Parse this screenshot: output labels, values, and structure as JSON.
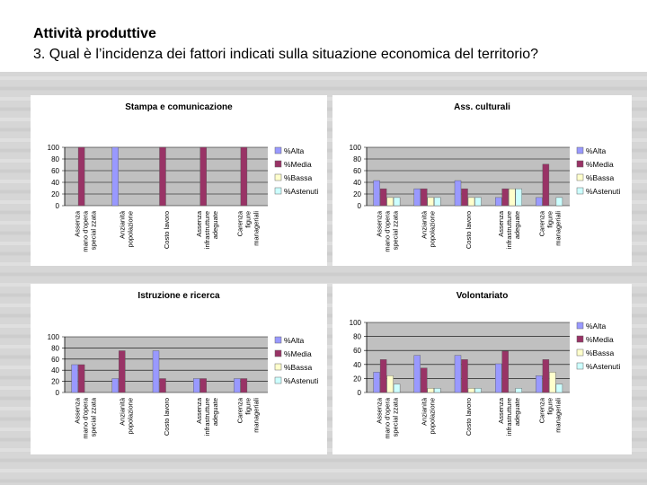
{
  "header": {
    "title": "Attività produttive",
    "subtitle": "3. Qual è l’incidenza dei fattori indicati sulla situazione economica del territorio?"
  },
  "colors": {
    "alta": "#9999ff",
    "media": "#993366",
    "bassa": "#ffffcc",
    "astenuti": "#ccffff",
    "plot_bg": "#c0c0c0"
  },
  "legend": [
    "%Alta",
    "%Media",
    "%Bassa",
    "%Astenuti"
  ],
  "chart_data": [
    {
      "type": "bar",
      "title": "Stampa e comunicazione",
      "categories": [
        [
          "Assenza",
          "mano d'opera",
          "special zzata"
        ],
        [
          "Anzianità",
          "popolazione"
        ],
        [
          "Costo lavoro"
        ],
        [
          "Assenza",
          "infrastrutture",
          "adeguate"
        ],
        [
          "Carenza",
          "figure",
          "manageriali"
        ]
      ],
      "series": [
        {
          "name": "%Alta",
          "values": [
            0,
            100,
            0,
            0,
            0
          ]
        },
        {
          "name": "%Media",
          "values": [
            100,
            0,
            100,
            100,
            100
          ]
        },
        {
          "name": "%Bassa",
          "values": [
            0,
            0,
            0,
            0,
            0
          ]
        },
        {
          "name": "%Astenuti",
          "values": [
            0,
            0,
            0,
            0,
            0
          ]
        }
      ],
      "yticks": [
        "0",
        "20",
        "40",
        "60",
        "80",
        "100"
      ],
      "ylim": [
        0,
        100
      ]
    },
    {
      "type": "bar",
      "title": "Ass. culturali",
      "categories": [
        [
          "Assenza",
          "mano d'opera",
          "special zzata"
        ],
        [
          "Anzianità",
          "popolazione"
        ],
        [
          "Costo lavoro"
        ],
        [
          "Assenza",
          "infrastrutture",
          "adeguate"
        ],
        [
          "Carenza",
          "figure",
          "manageriali"
        ]
      ],
      "series": [
        {
          "name": "%Alta",
          "values": [
            43,
            29,
            43,
            14,
            14
          ]
        },
        {
          "name": "%Media",
          "values": [
            29,
            29,
            29,
            29,
            71
          ]
        },
        {
          "name": "%Bassa",
          "values": [
            14,
            14,
            14,
            29,
            0
          ]
        },
        {
          "name": "%Astenuti",
          "values": [
            14,
            14,
            14,
            29,
            14
          ]
        }
      ],
      "yticks": [
        "0",
        "20",
        "40",
        "60",
        "80",
        "100"
      ],
      "ylim": [
        0,
        100
      ]
    },
    {
      "type": "bar",
      "title": "Istruzione e ricerca",
      "categories": [
        [
          "Assenza",
          "mano d'opera",
          "special zzata"
        ],
        [
          "Anzianità",
          "popolazione"
        ],
        [
          "Costo lavoro"
        ],
        [
          "Assenza",
          "infrastrutture",
          "adeguate"
        ],
        [
          "Carenza",
          "figure",
          "manageriali"
        ]
      ],
      "series": [
        {
          "name": "%Alta",
          "values": [
            50,
            25,
            75,
            25,
            25
          ]
        },
        {
          "name": "%Media",
          "values": [
            50,
            75,
            25,
            25,
            25
          ]
        },
        {
          "name": "%Bassa",
          "values": [
            0,
            0,
            0,
            0,
            0
          ]
        },
        {
          "name": "%Astenuti",
          "values": [
            0,
            0,
            0,
            0,
            0
          ]
        }
      ],
      "yticks": [
        "0",
        "20",
        "40",
        "60",
        "80",
        "100"
      ],
      "ylim": [
        0,
        100
      ]
    },
    {
      "type": "bar",
      "title": "Volontariato",
      "categories": [
        [
          "Assenza",
          "mano d'opera",
          "special zzata"
        ],
        [
          "Anzianità",
          "popolazione"
        ],
        [
          "Costo lavoro"
        ],
        [
          "Assenza",
          "infrastrutture",
          "adeguate"
        ],
        [
          "Carenza",
          "figure",
          "manageriali"
        ]
      ],
      "series": [
        {
          "name": "%Alta",
          "values": [
            29,
            53,
            53,
            41,
            24
          ]
        },
        {
          "name": "%Media",
          "values": [
            47,
            35,
            47,
            59,
            47
          ]
        },
        {
          "name": "%Bassa",
          "values": [
            24,
            6,
            6,
            0,
            29
          ]
        },
        {
          "name": "%Astenuti",
          "values": [
            12,
            6,
            6,
            6,
            12
          ]
        }
      ],
      "yticks": [
        "0",
        "20",
        "40",
        "60",
        "80",
        "100"
      ],
      "ylim": [
        0,
        100
      ]
    }
  ]
}
